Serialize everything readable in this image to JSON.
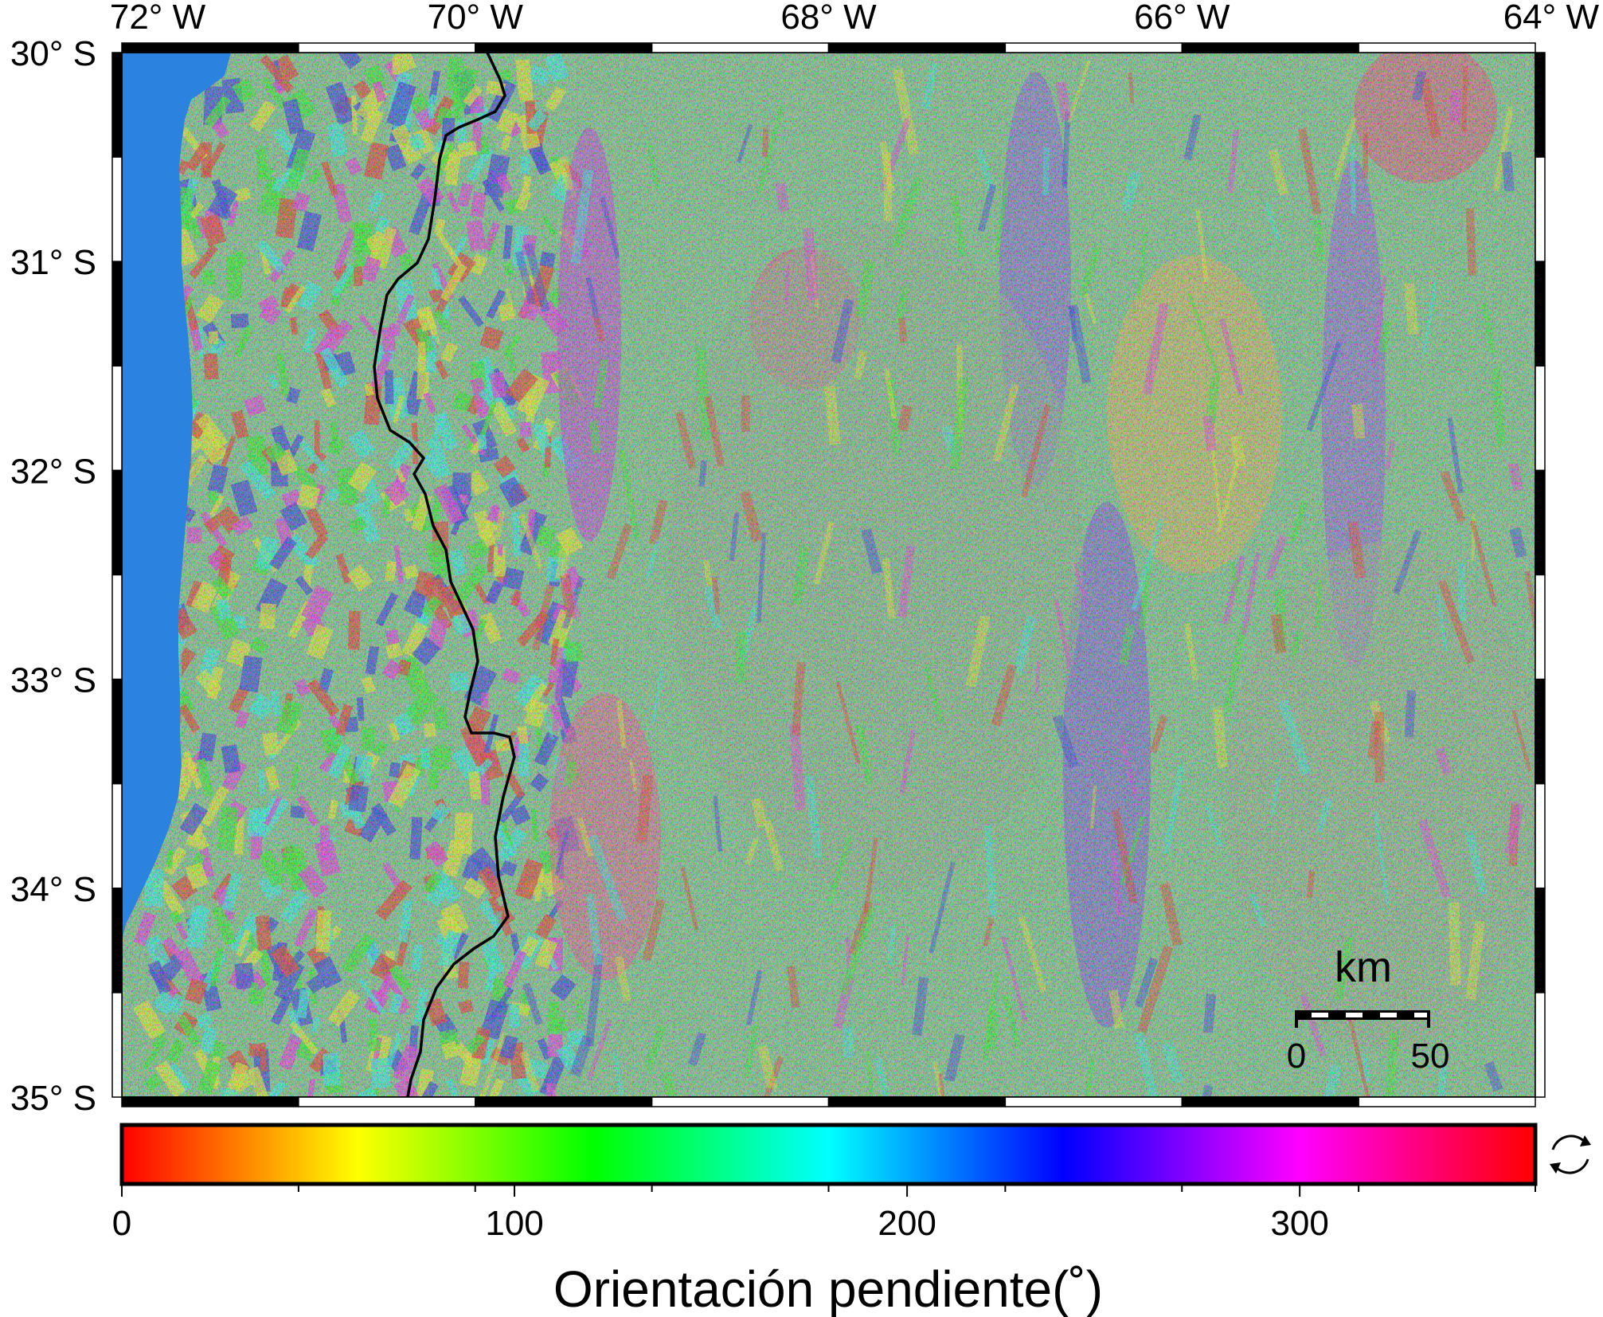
{
  "map": {
    "lon_range": [
      -72,
      -64
    ],
    "lat_range": [
      -35,
      -30
    ],
    "lon_ticks": [
      {
        "value": -72,
        "label": "72° W"
      },
      {
        "value": -70,
        "label": "70° W"
      },
      {
        "value": -68,
        "label": "68° W"
      },
      {
        "value": -66,
        "label": "66° W"
      },
      {
        "value": -64,
        "label": "64° W"
      }
    ],
    "lat_ticks": [
      {
        "value": -30,
        "label": "30° S"
      },
      {
        "value": -31,
        "label": "31° S"
      },
      {
        "value": -32,
        "label": "32° S"
      },
      {
        "value": -33,
        "label": "33° S"
      },
      {
        "value": -34,
        "label": "34° S"
      },
      {
        "value": -35,
        "label": "35° S"
      }
    ],
    "ocean_color": "#2b83df",
    "border_color": "#000000",
    "scalebar": {
      "unit": "km",
      "labels": [
        "0",
        "50"
      ]
    }
  },
  "colorbar": {
    "range": [
      0,
      360
    ],
    "tick_labels": [
      {
        "value": 0,
        "label": "0"
      },
      {
        "value": 100,
        "label": "100"
      },
      {
        "value": 200,
        "label": "200"
      },
      {
        "value": 300,
        "label": "300"
      }
    ],
    "title": "Orientación pendiente(˚)",
    "colors": [
      "#ff0000",
      "#ffff00",
      "#00ff00",
      "#00ffff",
      "#0000ff",
      "#ff00ff",
      "#ff0000"
    ],
    "cyclic_icon": "cyclic-arrows-icon"
  }
}
